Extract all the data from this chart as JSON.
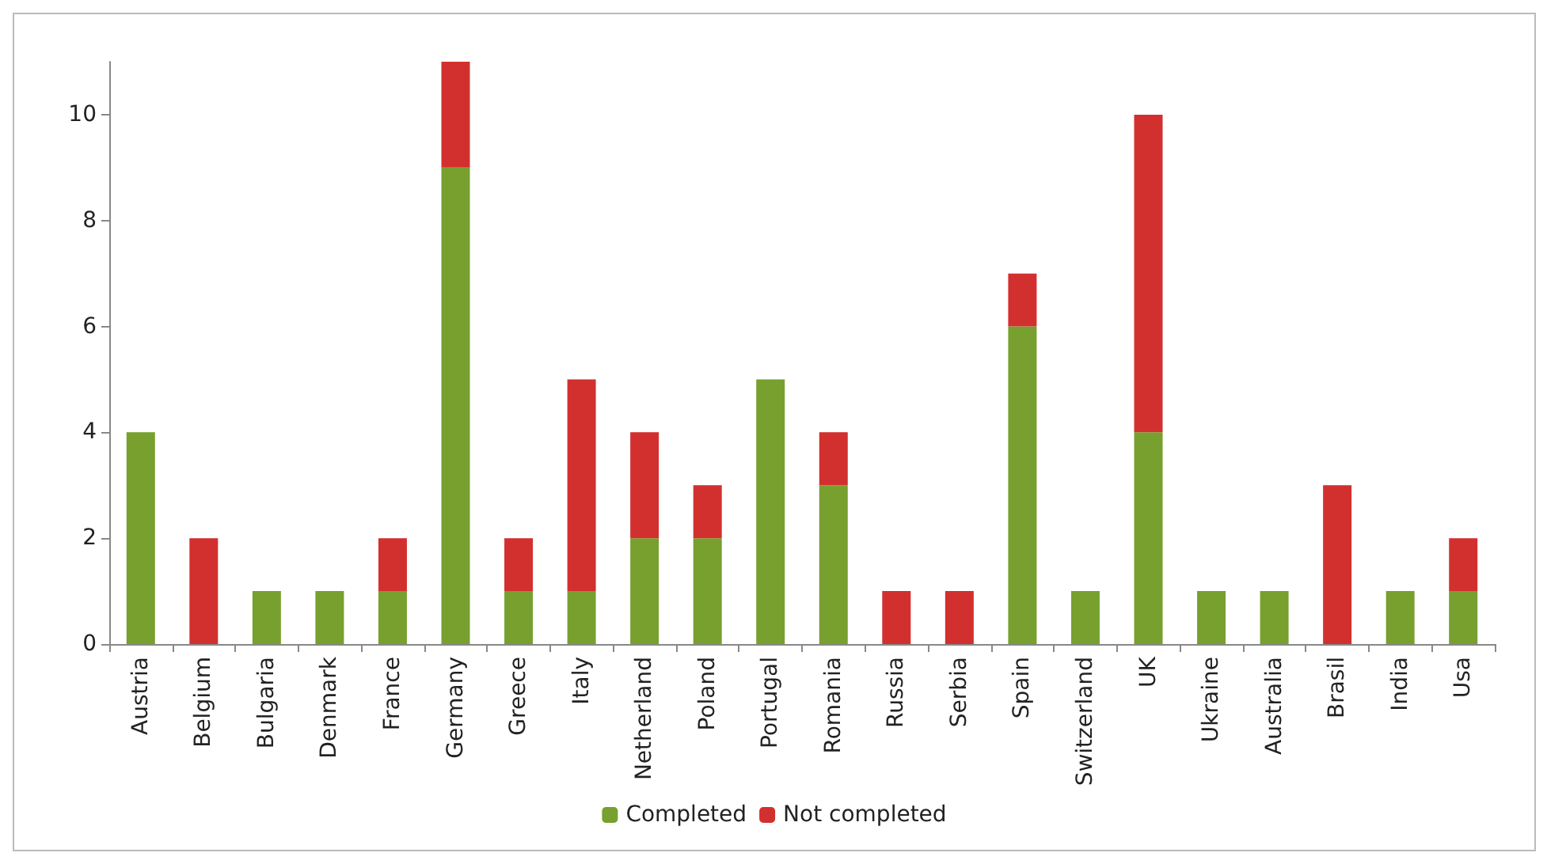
{
  "chart_data": {
    "type": "bar",
    "stacked": true,
    "categories": [
      "Austria",
      "Belgium",
      "Bulgaria",
      "Denmark",
      "France",
      "Germany",
      "Greece",
      "Italy",
      "Netherland",
      "Poland",
      "Portugal",
      "Romania",
      "Russia",
      "Serbia",
      "Spain",
      "Switzerland",
      "UK",
      "Ukraine",
      "Australia",
      "Brasil",
      "India",
      "Usa"
    ],
    "series": [
      {
        "name": "Completed",
        "color": "#77a02e",
        "values": [
          4,
          0,
          1,
          1,
          1,
          9,
          1,
          1,
          2,
          2,
          5,
          3,
          0,
          0,
          6,
          1,
          4,
          1,
          1,
          0,
          1,
          1
        ]
      },
      {
        "name": "Not completed",
        "color": "#d2302e",
        "values": [
          0,
          2,
          0,
          0,
          1,
          2,
          1,
          4,
          2,
          1,
          0,
          1,
          1,
          1,
          1,
          0,
          6,
          0,
          0,
          3,
          0,
          1
        ]
      }
    ],
    "ylim": [
      0,
      11
    ],
    "yticks": [
      0,
      2,
      4,
      6,
      8,
      10
    ],
    "grid": false,
    "legend": "bottom"
  }
}
